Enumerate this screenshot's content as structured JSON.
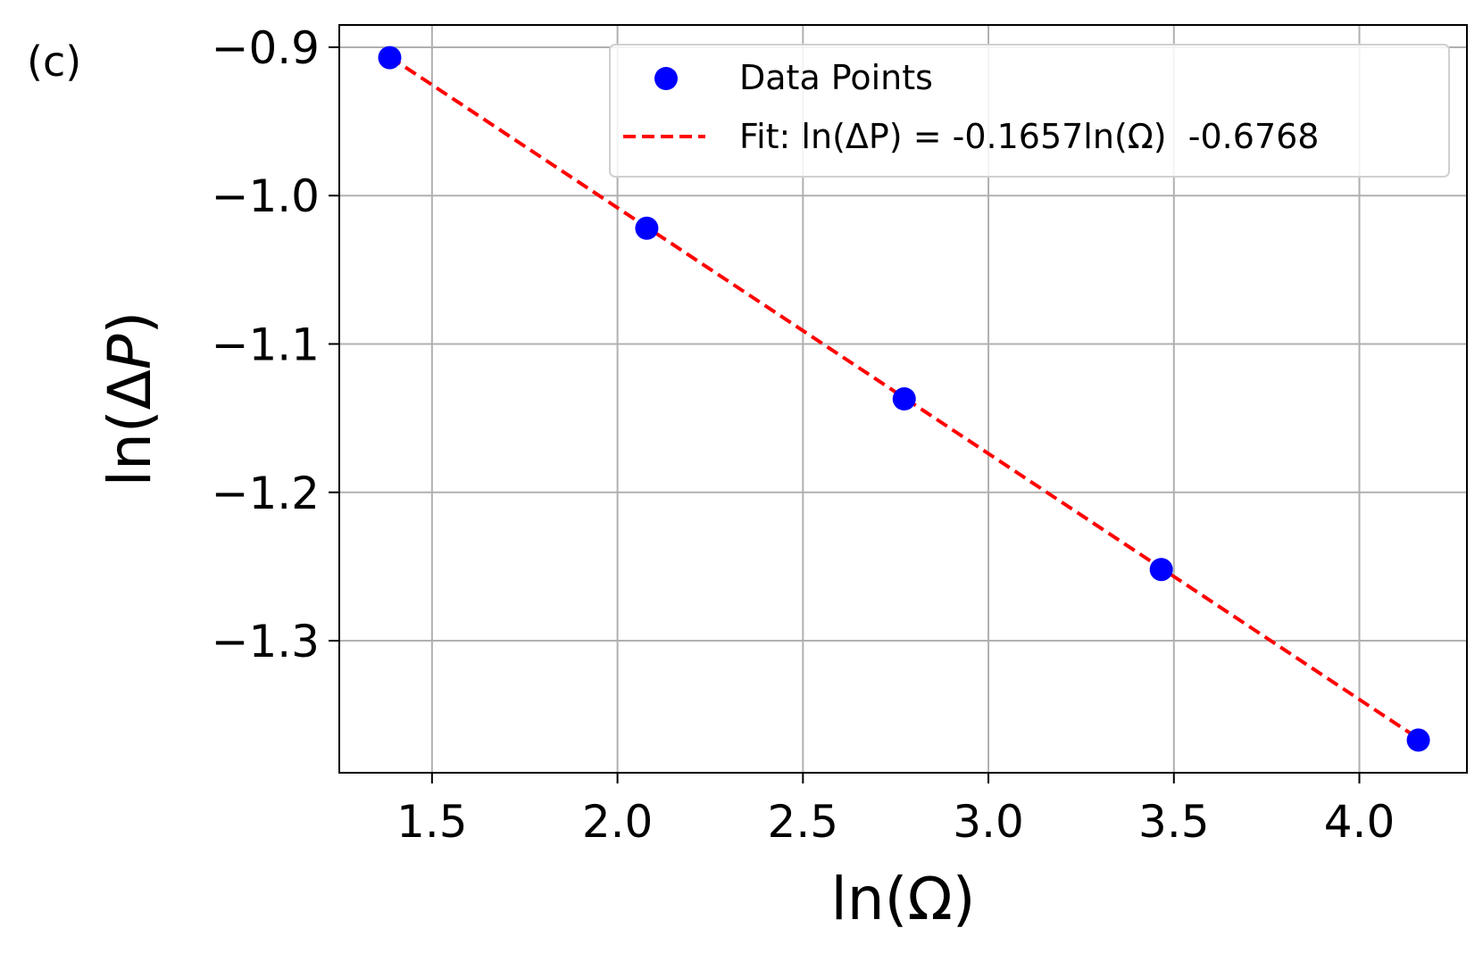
{
  "panel_label": "(c)",
  "colors": {
    "points": "#0000ff",
    "fit": "#ff0000",
    "grid": "#b0b0b0",
    "frame": "#000000"
  },
  "chart_data": {
    "type": "scatter",
    "xlabel": "ln(Ω)",
    "ylabel_prefix": "ln(Δ",
    "ylabel_italic": "P",
    "ylabel_suffix": ")",
    "xlim": [
      1.25,
      4.29
    ],
    "ylim": [
      -1.389,
      -0.885
    ],
    "xticks": [
      1.5,
      2.0,
      2.5,
      3.0,
      3.5,
      4.0
    ],
    "xtick_labels": [
      "1.5",
      "2.0",
      "2.5",
      "3.0",
      "3.5",
      "4.0"
    ],
    "yticks": [
      -0.9,
      -1.0,
      -1.1,
      -1.2,
      -1.3
    ],
    "ytick_labels": [
      "−0.9",
      "−1.0",
      "−1.1",
      "−1.2",
      "−1.3"
    ],
    "grid": true,
    "legend_position": "top-right",
    "series": [
      {
        "name": "Data Points",
        "kind": "scatter",
        "x": [
          1.386,
          2.079,
          2.773,
          3.466,
          4.159
        ],
        "y": [
          -0.907,
          -1.022,
          -1.137,
          -1.252,
          -1.367
        ]
      },
      {
        "name": "Fit: ln(ΔP) = -0.1657ln(Ω)  -0.6768",
        "kind": "line",
        "style": "dashed",
        "slope": -0.1657,
        "intercept": -0.6768,
        "x": [
          1.386,
          4.159
        ]
      }
    ]
  }
}
